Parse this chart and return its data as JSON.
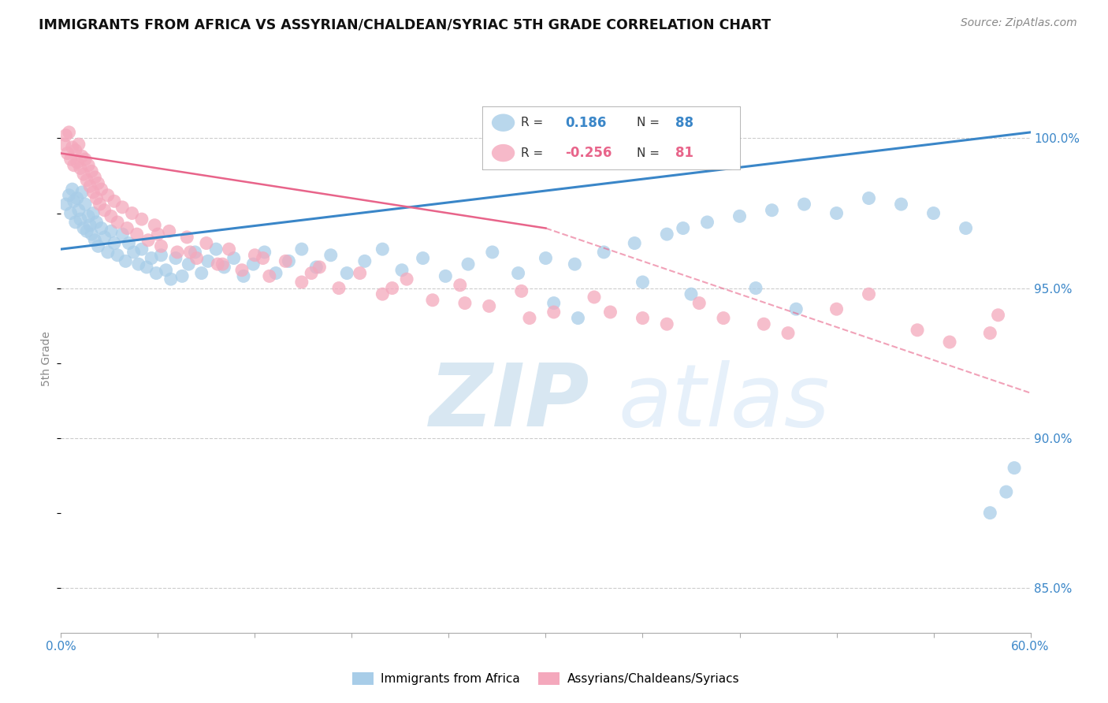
{
  "title": "IMMIGRANTS FROM AFRICA VS ASSYRIAN/CHALDEAN/SYRIAC 5TH GRADE CORRELATION CHART",
  "source": "Source: ZipAtlas.com",
  "ylabel": "5th Grade",
  "y_tick_labels": [
    "85.0%",
    "90.0%",
    "95.0%",
    "100.0%"
  ],
  "y_tick_values": [
    85.0,
    90.0,
    95.0,
    100.0
  ],
  "x_min": 0.0,
  "x_max": 60.0,
  "y_min": 83.5,
  "y_max": 101.8,
  "R_blue": 0.186,
  "N_blue": 88,
  "R_pink": -0.256,
  "N_pink": 81,
  "blue_color": "#a8cde8",
  "pink_color": "#f4a8bc",
  "blue_line_color": "#3a86c8",
  "pink_line_color": "#e8648a",
  "watermark_zip_color": "#c8dff0",
  "watermark_atlas_color": "#d8e8f4",
  "blue_scatter_x": [
    0.3,
    0.5,
    0.6,
    0.7,
    0.8,
    0.9,
    1.0,
    1.1,
    1.2,
    1.3,
    1.4,
    1.5,
    1.6,
    1.7,
    1.8,
    1.9,
    2.0,
    2.1,
    2.2,
    2.3,
    2.5,
    2.7,
    2.9,
    3.1,
    3.3,
    3.5,
    3.8,
    4.0,
    4.2,
    4.5,
    4.8,
    5.0,
    5.3,
    5.6,
    5.9,
    6.2,
    6.5,
    6.8,
    7.1,
    7.5,
    7.9,
    8.3,
    8.7,
    9.1,
    9.6,
    10.1,
    10.7,
    11.3,
    11.9,
    12.6,
    13.3,
    14.1,
    14.9,
    15.8,
    16.7,
    17.7,
    18.8,
    19.9,
    21.1,
    22.4,
    23.8,
    25.2,
    26.7,
    28.3,
    30.0,
    31.8,
    33.6,
    35.5,
    37.5,
    38.5,
    40.0,
    42.0,
    44.0,
    46.0,
    48.0,
    50.0,
    52.0,
    54.0,
    56.0,
    57.5,
    58.5,
    59.0,
    30.5,
    32.0,
    36.0,
    39.0,
    43.0,
    45.5
  ],
  "blue_scatter_y": [
    97.8,
    98.1,
    97.5,
    98.3,
    97.9,
    97.2,
    98.0,
    97.6,
    97.3,
    98.2,
    97.0,
    97.8,
    96.9,
    97.4,
    97.1,
    96.8,
    97.5,
    96.6,
    97.2,
    96.4,
    97.0,
    96.7,
    96.2,
    96.9,
    96.5,
    96.1,
    96.8,
    95.9,
    96.5,
    96.2,
    95.8,
    96.3,
    95.7,
    96.0,
    95.5,
    96.1,
    95.6,
    95.3,
    96.0,
    95.4,
    95.8,
    96.2,
    95.5,
    95.9,
    96.3,
    95.7,
    96.0,
    95.4,
    95.8,
    96.2,
    95.5,
    95.9,
    96.3,
    95.7,
    96.1,
    95.5,
    95.9,
    96.3,
    95.6,
    96.0,
    95.4,
    95.8,
    96.2,
    95.5,
    96.0,
    95.8,
    96.2,
    96.5,
    96.8,
    97.0,
    97.2,
    97.4,
    97.6,
    97.8,
    97.5,
    98.0,
    97.8,
    97.5,
    97.0,
    87.5,
    88.2,
    89.0,
    94.5,
    94.0,
    95.2,
    94.8,
    95.0,
    94.3
  ],
  "pink_scatter_x": [
    0.2,
    0.3,
    0.4,
    0.5,
    0.6,
    0.7,
    0.8,
    0.9,
    1.0,
    1.1,
    1.2,
    1.3,
    1.4,
    1.5,
    1.6,
    1.7,
    1.8,
    1.9,
    2.0,
    2.1,
    2.2,
    2.3,
    2.4,
    2.5,
    2.7,
    2.9,
    3.1,
    3.3,
    3.5,
    3.8,
    4.1,
    4.4,
    4.7,
    5.0,
    5.4,
    5.8,
    6.2,
    6.7,
    7.2,
    7.8,
    8.4,
    9.0,
    9.7,
    10.4,
    11.2,
    12.0,
    12.9,
    13.9,
    14.9,
    16.0,
    17.2,
    18.5,
    19.9,
    21.4,
    23.0,
    24.7,
    26.5,
    28.5,
    30.5,
    33.0,
    36.0,
    39.5,
    43.5,
    48.0,
    53.0,
    58.0,
    15.5,
    20.5,
    25.0,
    29.0,
    34.0,
    37.5,
    41.0,
    45.0,
    50.0,
    55.0,
    57.5,
    6.0,
    8.0,
    10.0,
    12.5
  ],
  "pink_scatter_y": [
    99.8,
    100.1,
    99.5,
    100.2,
    99.3,
    99.7,
    99.1,
    99.6,
    99.2,
    99.8,
    99.0,
    99.4,
    98.8,
    99.3,
    98.6,
    99.1,
    98.4,
    98.9,
    98.2,
    98.7,
    98.0,
    98.5,
    97.8,
    98.3,
    97.6,
    98.1,
    97.4,
    97.9,
    97.2,
    97.7,
    97.0,
    97.5,
    96.8,
    97.3,
    96.6,
    97.1,
    96.4,
    96.9,
    96.2,
    96.7,
    96.0,
    96.5,
    95.8,
    96.3,
    95.6,
    96.1,
    95.4,
    95.9,
    95.2,
    95.7,
    95.0,
    95.5,
    94.8,
    95.3,
    94.6,
    95.1,
    94.4,
    94.9,
    94.2,
    94.7,
    94.0,
    94.5,
    93.8,
    94.3,
    93.6,
    94.1,
    95.5,
    95.0,
    94.5,
    94.0,
    94.2,
    93.8,
    94.0,
    93.5,
    94.8,
    93.2,
    93.5,
    96.8,
    96.2,
    95.8,
    96.0
  ],
  "blue_line_x0": 0.0,
  "blue_line_y0": 96.3,
  "blue_line_x1": 60.0,
  "blue_line_y1": 100.2,
  "pink_solid_x0": 0.0,
  "pink_solid_y0": 99.5,
  "pink_solid_x1": 30.0,
  "pink_solid_y1": 97.0,
  "pink_dash_x0": 30.0,
  "pink_dash_y0": 97.0,
  "pink_dash_x1": 60.0,
  "pink_dash_y1": 91.5,
  "hline_100_y": 100.0,
  "hline_95_y": 95.0,
  "hline_90_y": 90.0,
  "hline_85_y": 85.0
}
